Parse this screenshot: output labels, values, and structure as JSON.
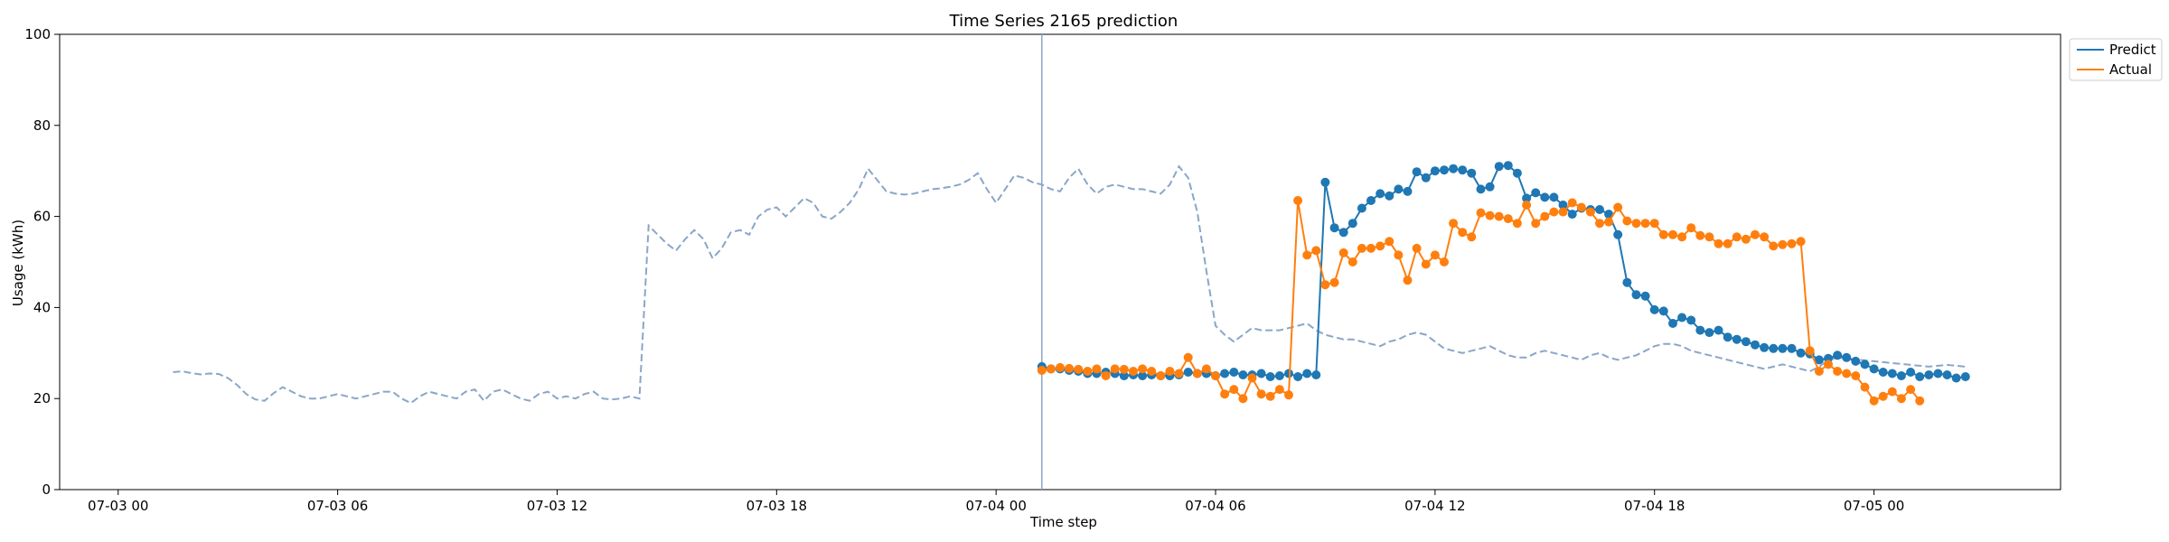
{
  "chart_data": {
    "type": "line",
    "title": "Time Series 2165 prediction",
    "xlabel": "Time step",
    "ylabel": "Usage (kWh)",
    "ylim": [
      0,
      100
    ],
    "yticks": [
      0,
      20,
      40,
      60,
      80,
      100
    ],
    "xlim": [
      "2024-07-02 22:24",
      "2024-07-05 05:06"
    ],
    "xticks": [
      "07-03 00",
      "07-03 06",
      "07-03 12",
      "07-03 18",
      "07-04 00",
      "07-04 06",
      "07-04 12",
      "07-04 18",
      "07-05 00"
    ],
    "x_start": "2024-07-03 01:30",
    "x_step_minutes": 15,
    "forecast_start": "2024-07-04 01:15",
    "grid": false,
    "legend_position": "top-right outside",
    "colors": {
      "predict": "#1f77b4",
      "actual": "#ff7f0e",
      "history": "#8aa6c8",
      "divider": "#8aa6c8"
    },
    "history": [
      25.8,
      26.0,
      25.6,
      25.3,
      25.5,
      25.4,
      24.5,
      23.0,
      21.0,
      19.8,
      19.5,
      21.2,
      22.5,
      21.5,
      20.5,
      20.0,
      20.0,
      20.5,
      21.0,
      20.5,
      20.0,
      20.5,
      21.0,
      21.5,
      21.5,
      20.0,
      19.0,
      20.5,
      21.5,
      21.0,
      20.5,
      20.0,
      21.5,
      22.0,
      19.5,
      21.5,
      22.0,
      21.0,
      20.0,
      19.5,
      21.0,
      21.5,
      20.0,
      20.5,
      20.0,
      21.0,
      21.5,
      20.0,
      19.8,
      20.0,
      20.5,
      20.0,
      58.0,
      56.0,
      54.0,
      52.5,
      55.0,
      57.0,
      55.0,
      50.8,
      53.0,
      56.5,
      57.0,
      56.0,
      60.0,
      61.5,
      62.0,
      60.0,
      62.0,
      64.0,
      63.0,
      60.0,
      59.5,
      61.0,
      63.0,
      66.0,
      70.5,
      68.0,
      65.5,
      65.0,
      64.8,
      65.0,
      65.5,
      66.0,
      66.2,
      66.5,
      67.0,
      68.0,
      69.5,
      66.0,
      63.0,
      66.0,
      69.0,
      68.5,
      67.5,
      67.0,
      66.0,
      65.5,
      68.5,
      70.5,
      67.0,
      65.0,
      66.5,
      67.0,
      66.5,
      66.0,
      66.0,
      65.5,
      65.0,
      67.0,
      71.0,
      68.5,
      61.0,
      48.0,
      36.0,
      34.0,
      32.5,
      34.0,
      35.5,
      35.0,
      35.0,
      35.0,
      35.5,
      36.0,
      36.5,
      35.0,
      34.0,
      33.5,
      33.0,
      33.0,
      32.5,
      32.0,
      31.5,
      32.5,
      33.0,
      34.0,
      34.5,
      34.0,
      32.5,
      31.0,
      30.5,
      30.0,
      30.5,
      31.0,
      31.5,
      30.5,
      29.5,
      29.0,
      29.0,
      30.0,
      30.5,
      30.0,
      29.5,
      29.0,
      28.5,
      29.5,
      30.0,
      29.0,
      28.5,
      29.0,
      29.5,
      30.5,
      31.5,
      32.0,
      32.0,
      31.5,
      30.5,
      30.0,
      29.5,
      29.0,
      28.5,
      28.0,
      27.5,
      27.0,
      26.5,
      27.0,
      27.5,
      27.0,
      26.5,
      26.0,
      27.0,
      28.5,
      29.0,
      28.8,
      28.6,
      28.4,
      28.2,
      28.0,
      27.8,
      27.6,
      27.4,
      27.2,
      27.0,
      27.2,
      27.4,
      27.2,
      27.0
    ],
    "series": [
      {
        "name": "Predict",
        "values": [
          27.0,
          26.5,
          26.5,
          26.2,
          26.0,
          25.5,
          25.5,
          25.8,
          25.5,
          25.0,
          25.2,
          25.0,
          25.2,
          25.0,
          25.0,
          25.2,
          25.8,
          25.5,
          25.5,
          25.0,
          25.5,
          25.8,
          25.2,
          25.2,
          25.5,
          24.8,
          25.0,
          25.5,
          24.8,
          25.5,
          25.2,
          67.5,
          57.5,
          56.5,
          58.5,
          61.8,
          63.5,
          65.0,
          64.5,
          66.0,
          65.5,
          69.8,
          68.5,
          70.0,
          70.2,
          70.5,
          70.2,
          69.5,
          66.0,
          66.5,
          71.0,
          71.2,
          69.5,
          64.0,
          65.2,
          64.2,
          64.2,
          62.5,
          60.5,
          61.8,
          61.5,
          61.5,
          60.5,
          56.0,
          45.5,
          42.8,
          42.5,
          39.5,
          39.2,
          36.5,
          37.8,
          37.2,
          35.0,
          34.5,
          35.0,
          33.5,
          33.0,
          32.5,
          31.8,
          31.2,
          31.0,
          31.0,
          31.0,
          30.0,
          29.8,
          28.5,
          28.8,
          29.5,
          29.0,
          28.2,
          27.5,
          26.5,
          25.8,
          25.5,
          25.0,
          25.8,
          24.8,
          25.2,
          25.5,
          25.2,
          24.5,
          24.8
        ]
      },
      {
        "name": "Actual",
        "values": [
          26.2,
          26.5,
          26.8,
          26.6,
          26.4,
          26.0,
          26.5,
          25.0,
          26.5,
          26.4,
          26.0,
          26.5,
          26.0,
          25.0,
          26.0,
          25.5,
          29.0,
          25.5,
          26.5,
          25.0,
          21.0,
          22.0,
          20.0,
          24.5,
          21.0,
          20.5,
          22.0,
          20.8,
          63.5,
          51.5,
          52.5,
          45.0,
          45.5,
          52.0,
          50.0,
          53.0,
          53.0,
          53.5,
          54.5,
          51.5,
          46.0,
          53.0,
          49.5,
          51.5,
          50.0,
          58.5,
          56.5,
          55.5,
          60.8,
          60.2,
          60.0,
          59.5,
          58.5,
          62.5,
          58.5,
          60.0,
          61.0,
          61.0,
          63.0,
          62.0,
          61.0,
          58.5,
          58.8,
          62.0,
          59.0,
          58.5,
          58.5,
          58.5,
          56.0,
          56.0,
          55.5,
          57.5,
          55.8,
          55.5,
          54.0,
          54.0,
          55.5,
          55.0,
          56.0,
          55.5,
          53.5,
          53.8,
          54.0,
          54.5,
          30.5,
          26.0,
          27.5,
          26.0,
          25.5,
          25.0,
          22.5,
          19.5,
          20.5,
          21.5,
          20.0,
          22.0,
          19.5
        ],
        "x_start": "2024-07-04 01:15"
      }
    ]
  }
}
